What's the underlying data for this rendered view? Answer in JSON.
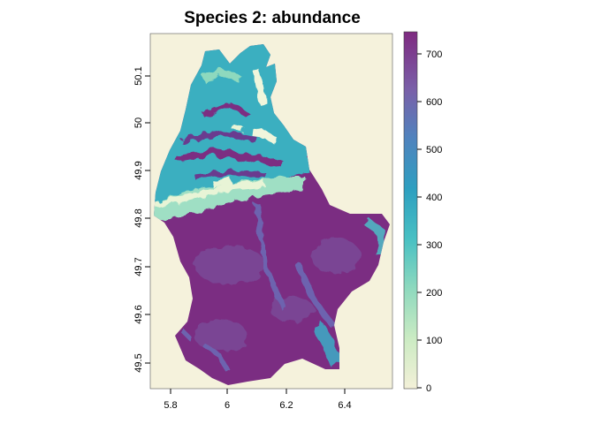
{
  "title": "Species 2: abundance",
  "map": {
    "x_ticks": [
      "5.8",
      "6",
      "6.2",
      "6.4"
    ],
    "y_ticks": [
      "49.5",
      "49.6",
      "49.7",
      "49.8",
      "49.9",
      "50",
      "50.1"
    ],
    "background_color": "#F5F2DC",
    "region": "Luxembourg",
    "value_range": [
      0,
      740
    ]
  },
  "legend": {
    "ticks": [
      "0",
      "100",
      "200",
      "300",
      "400",
      "500",
      "600",
      "700"
    ],
    "colors": [
      "#F3F0D8",
      "#CBEBC3",
      "#8ED9BE",
      "#48C0C3",
      "#2E9FC0",
      "#4F83BE",
      "#7A5FA8",
      "#7E2A80"
    ]
  }
}
